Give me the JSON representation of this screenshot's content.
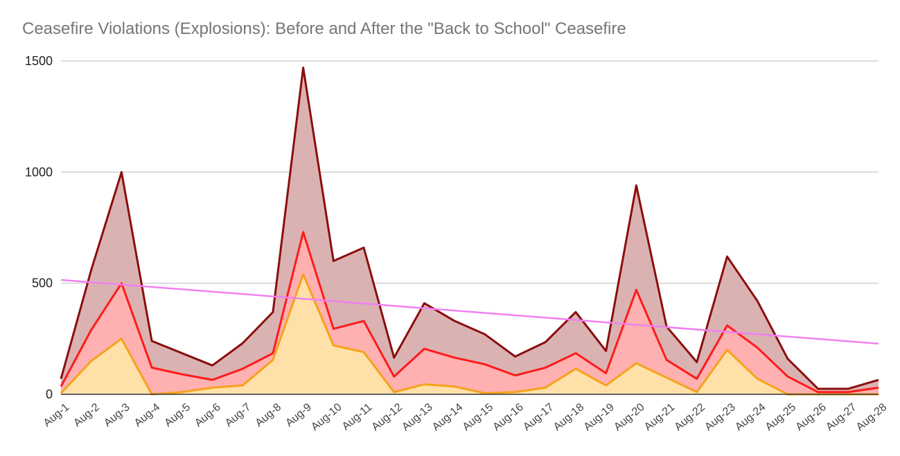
{
  "chart_data": {
    "type": "area",
    "title": "Ceasefire Violations (Explosions): Before and After the \"Back to School\" Ceasefire",
    "xlabel": "",
    "ylabel": "",
    "ylim": [
      0,
      1500
    ],
    "yticks": [
      0,
      500,
      1000,
      1500
    ],
    "grid": true,
    "legend": "none",
    "categories": [
      "Aug-1",
      "Aug-2",
      "Aug-3",
      "Aug-4",
      "Aug-5",
      "Aug-6",
      "Aug-7",
      "Aug-8",
      "Aug-9",
      "Aug-10",
      "Aug-11",
      "Aug-12",
      "Aug-13",
      "Aug-14",
      "Aug-15",
      "Aug-16",
      "Aug-17",
      "Aug-18",
      "Aug-19",
      "Aug-20",
      "Aug-21",
      "Aug-22",
      "Aug-23",
      "Aug-24",
      "Aug-25",
      "Aug-26",
      "Aug-27",
      "Aug-28"
    ],
    "series": [
      {
        "color": "#8b0d0d",
        "fill": "#dbb2b2",
        "values": [
          70,
          560,
          1000,
          240,
          185,
          130,
          230,
          370,
          1470,
          600,
          660,
          165,
          410,
          330,
          270,
          170,
          235,
          370,
          195,
          940,
          305,
          145,
          620,
          420,
          160,
          25,
          25,
          65
        ]
      },
      {
        "color": "#ff1a1a",
        "fill": "#ffb0b0",
        "values": [
          35,
          290,
          500,
          120,
          90,
          65,
          115,
          185,
          730,
          295,
          330,
          80,
          205,
          165,
          135,
          85,
          120,
          185,
          95,
          470,
          155,
          70,
          310,
          210,
          80,
          10,
          10,
          30
        ]
      },
      {
        "color": "#f5a21a",
        "fill": "#ffe0a8",
        "values": [
          5,
          150,
          250,
          0,
          10,
          30,
          40,
          155,
          540,
          220,
          190,
          10,
          45,
          35,
          5,
          10,
          30,
          115,
          40,
          140,
          75,
          10,
          200,
          70,
          0,
          0,
          0,
          0
        ]
      }
    ],
    "trendline": {
      "color": "#f080f0",
      "start": 515,
      "end": 228
    }
  }
}
